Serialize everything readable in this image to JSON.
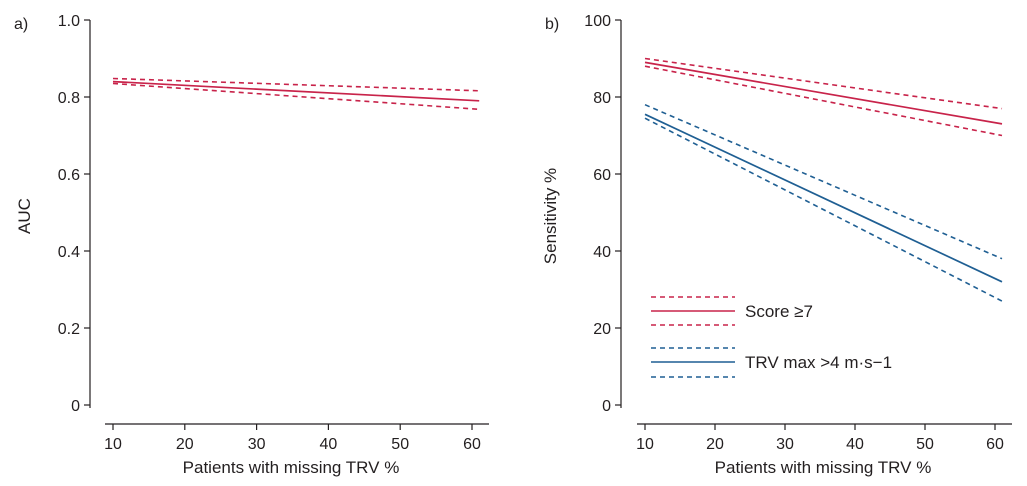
{
  "chart_data": [
    {
      "type": "line",
      "panel_label": "a)",
      "xlabel": "Patients with missing TRV %",
      "ylabel": "AUC",
      "xlim": [
        10,
        60
      ],
      "ylim": [
        0,
        1.0
      ],
      "xticks": [
        "10",
        "20",
        "30",
        "40",
        "50",
        "60"
      ],
      "yticks": [
        "0",
        "0.2",
        "0.4",
        "0.6",
        "0.8",
        "1.0"
      ],
      "series": [
        {
          "color": "#c8234a",
          "x": [
            10,
            61
          ],
          "y": [
            0.84,
            0.79
          ],
          "ci_upper": [
            0.848,
            0.816
          ],
          "ci_lower": [
            0.835,
            0.768
          ]
        }
      ]
    },
    {
      "type": "line",
      "panel_label": "b)",
      "xlabel": "Patients with missing TRV %",
      "ylabel": "Sensitivity %",
      "xlim": [
        10,
        60
      ],
      "ylim": [
        0,
        100
      ],
      "xticks": [
        "10",
        "20",
        "30",
        "40",
        "50",
        "60"
      ],
      "yticks": [
        "0",
        "20",
        "40",
        "60",
        "80",
        "100"
      ],
      "legend_position": "bottom-left",
      "series": [
        {
          "name": "Score ≥7",
          "color": "#c8234a",
          "x": [
            10,
            61
          ],
          "y": [
            89,
            73
          ],
          "ci_upper": [
            90,
            77
          ],
          "ci_lower": [
            88,
            70
          ]
        },
        {
          "name": "TRV max >4 m·s−1",
          "color": "#1f5f93",
          "x": [
            10,
            61
          ],
          "y": [
            75.5,
            32
          ],
          "ci_upper": [
            78,
            38
          ],
          "ci_lower": [
            74.5,
            27
          ]
        }
      ]
    }
  ]
}
